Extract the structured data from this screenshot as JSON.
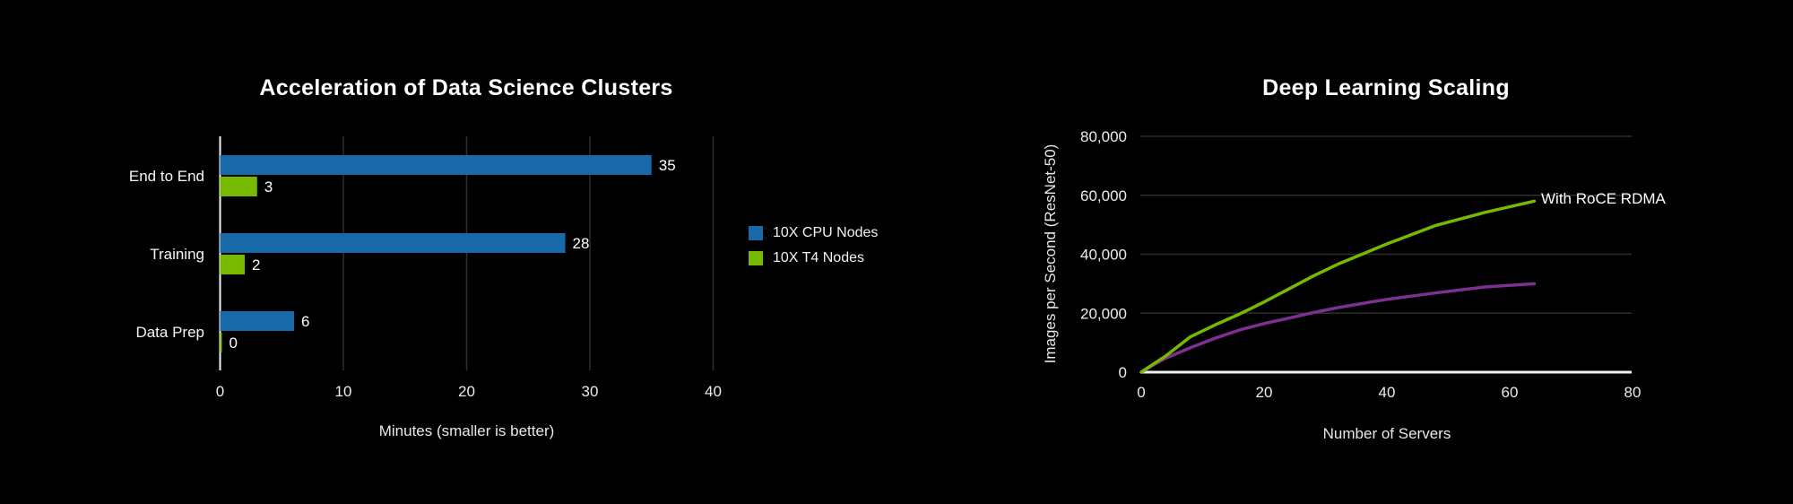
{
  "page": {
    "background": "#000000"
  },
  "colors": {
    "cpu_blue": "#1769A8",
    "nvidia_green": "#76B900",
    "purple": "#7D3092",
    "gridline": "#2E2E2E",
    "axis_line": "#F2F2F2",
    "text": "#FFFFFF"
  },
  "chart_data": [
    {
      "type": "bar",
      "orientation": "horizontal",
      "title": "Acceleration of Data Science Clusters",
      "categories": [
        "End to End",
        "Training",
        "Data Prep"
      ],
      "series": [
        {
          "name": "10X CPU Nodes",
          "color": "#1769A8",
          "values": [
            35,
            28,
            6
          ]
        },
        {
          "name": "10X T4 Nodes",
          "color": "#76B900",
          "values": [
            3,
            2,
            0
          ]
        }
      ],
      "value_labels": [
        [
          "35",
          "3"
        ],
        [
          "28",
          "2"
        ],
        [
          "6",
          "0"
        ]
      ],
      "xlabel": "Minutes (smaller is better)",
      "xlim": [
        0,
        40
      ],
      "xticks": [
        0,
        10,
        20,
        30,
        40
      ],
      "xtick_labels": [
        "0",
        "10",
        "20",
        "30",
        "40"
      ],
      "grid": "vertical",
      "legend_position": "right"
    },
    {
      "type": "line",
      "title": "Deep Learning Scaling",
      "xlabel": "Number of Servers",
      "ylabel": "Images per Second (ResNet-50)",
      "xlim": [
        0,
        80
      ],
      "ylim": [
        0,
        80000
      ],
      "xticks": [
        0,
        20,
        40,
        60,
        80
      ],
      "xtick_labels": [
        "0",
        "20",
        "40",
        "60",
        "80"
      ],
      "yticks": [
        0,
        20000,
        40000,
        60000,
        80000
      ],
      "ytick_labels": [
        "0",
        "20,000",
        "40,000",
        "60,000",
        "80,000"
      ],
      "annotation": "With RoCE RDMA",
      "grid": "horizontal",
      "series": [
        {
          "label": "With RoCE RDMA",
          "color": "#76B900",
          "x": [
            0,
            2,
            4,
            8,
            12,
            16,
            20,
            24,
            28,
            32,
            40,
            48,
            56,
            64
          ],
          "y": [
            0,
            2800,
            5500,
            12000,
            16000,
            19700,
            23800,
            28200,
            32600,
            36600,
            43500,
            49800,
            54200,
            58000
          ]
        },
        {
          "label": "",
          "color": "#7D3092",
          "x": [
            0,
            2,
            4,
            8,
            12,
            16,
            20,
            24,
            28,
            32,
            40,
            48,
            56,
            64
          ],
          "y": [
            0,
            2500,
            4800,
            8300,
            11500,
            14300,
            16500,
            18300,
            20200,
            21900,
            24700,
            26900,
            28900,
            30000
          ]
        }
      ]
    }
  ]
}
